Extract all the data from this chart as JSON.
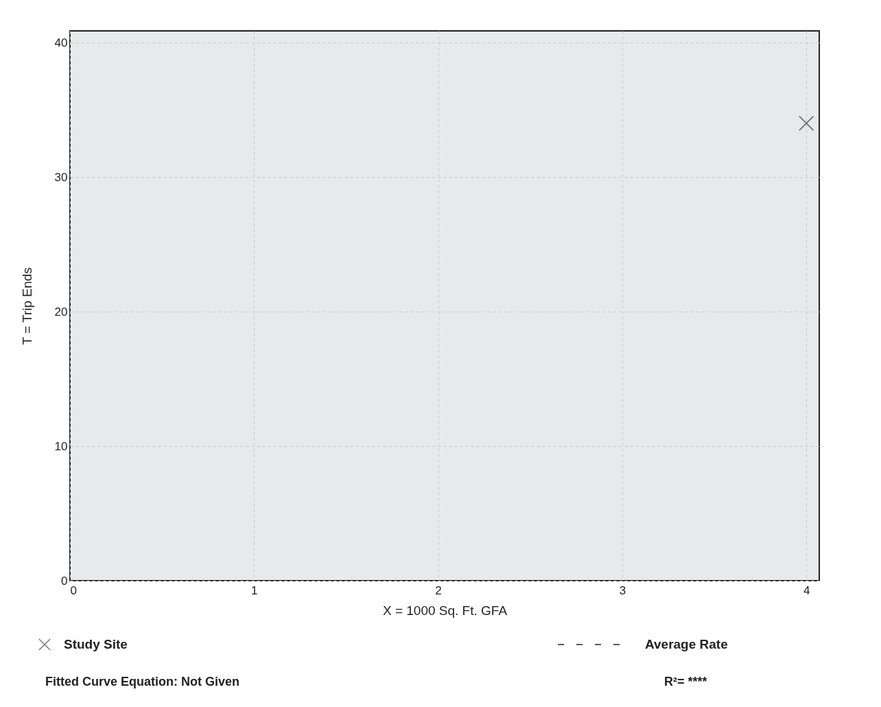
{
  "chart_data": {
    "type": "scatter",
    "xlabel": "X = 1000 Sq. Ft. GFA",
    "ylabel": "T = Trip Ends",
    "xlim": [
      0,
      4.07
    ],
    "xticks": [
      {
        "value": 0,
        "label": "0"
      },
      {
        "value": 1,
        "label": "1"
      },
      {
        "value": 2,
        "label": "2"
      },
      {
        "value": 3,
        "label": "3"
      },
      {
        "value": 4,
        "label": "4"
      }
    ],
    "ylim": [
      0,
      40.87
    ],
    "yticks": [
      0,
      10,
      20,
      30,
      40
    ],
    "grid": true,
    "legend": "bottom",
    "series": [
      {
        "name": "Study Site",
        "type": "scatter",
        "marker": "cross",
        "color": "#444444",
        "x": [
          4
        ],
        "values": [
          34
        ]
      },
      {
        "name": "Average Rate",
        "type": "line",
        "line_style": "dashed",
        "color": "#222222"
      }
    ],
    "annotations": [
      "Fitted Curve Equation: Not Given",
      "R²= ****"
    ]
  }
}
